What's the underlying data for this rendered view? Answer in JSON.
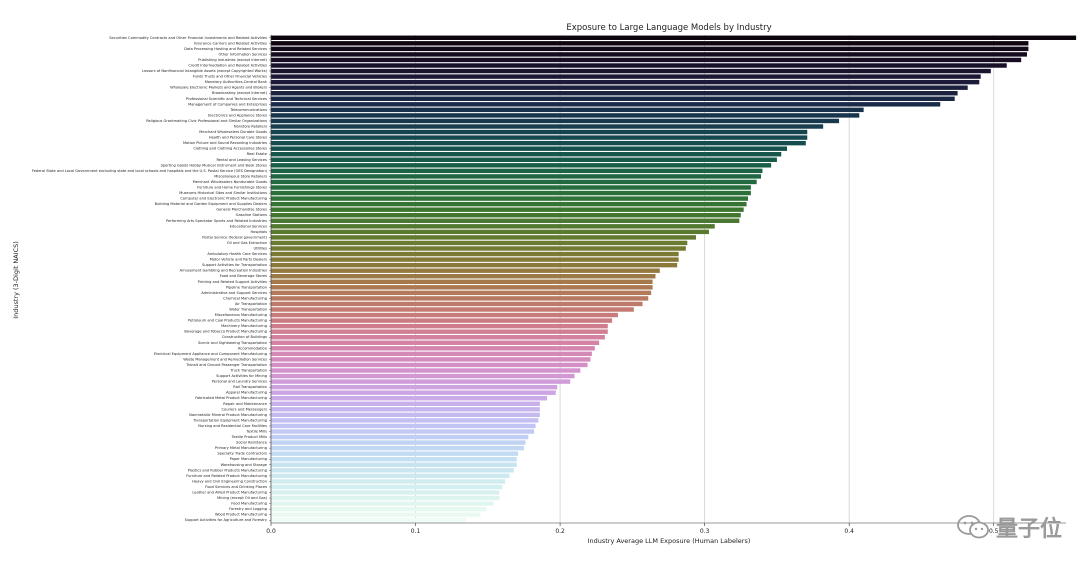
{
  "chart_data": {
    "type": "bar",
    "orientation": "horizontal",
    "title": "Exposure to Large Language Models by Industry",
    "xlabel": "Industry Average LLM Exposure (Human Labelers)",
    "ylabel": "Industry (3-Digit NAICS)",
    "xlim": [
      0,
      0.55
    ],
    "xticks": [
      "0.0",
      "0.1",
      "0.2",
      "0.3",
      "0.4",
      "0.5"
    ],
    "grid": "vertical",
    "colormap": "cubehelix",
    "categories": [
      "Securities Commodity Contracts and Other Financial Investments and Related Activities",
      "Insurance Carriers and Related Activities",
      "Data Processing Hosting and Related Services",
      "Other Information Services",
      "Publishing Industries (except Internet)",
      "Credit Intermediation and Related Activities",
      "Lessors of Nonfinancial Intangible Assets (except Copyrighted Works)",
      "Funds Trusts and Other Financial Vehicles",
      "Monetary Authorities-Central Bank",
      "Wholesale Electronic Markets and Agents and Brokers",
      "Broadcasting (except Internet)",
      "Professional Scientific and Technical Services",
      "Management of Companies and Enterprises",
      "Telecommunications",
      "Electronics and Appliance Stores",
      "Religious Grantmaking Civic Professional and Similar Organizations",
      "Nonstore Retailers",
      "Merchant Wholesalers Durable Goods",
      "Health and Personal Care Stores",
      "Motion Picture and Sound Recording Industries",
      "Clothing and Clothing Accessories Stores",
      "Real Estate",
      "Rental and Leasing Services",
      "Sporting Goods Hobby Musical Instrument and Book Stores",
      "Federal State and Local Government excluding state and local schools and hospitals and the U.S. Postal Service (OES Designation)",
      "Miscellaneous Store Retailers",
      "Merchant Wholesalers Nondurable Goods",
      "Furniture and Home Furnishings Stores",
      "Museums Historical Sites and Similar Institutions",
      "Computer and Electronic Product Manufacturing",
      "Building Material and Garden Equipment and Supplies Dealers",
      "General Merchandise Stores",
      "Gasoline Stations",
      "Performing Arts Spectator Sports and Related Industries",
      "Educational Services",
      "Hospitals",
      "Postal Service (federal government)",
      "Oil and Gas Extraction",
      "Utilities",
      "Ambulatory Health Care Services",
      "Motor Vehicle and Parts Dealers",
      "Support Activities for Transportation",
      "Amusement Gambling and Recreation Industries",
      "Food and Beverage Stores",
      "Printing and Related Support Activities",
      "Pipeline Transportation",
      "Administrative and Support Services",
      "Chemical Manufacturing",
      "Air Transportation",
      "Water Transportation",
      "Miscellaneous Manufacturing",
      "Petroleum and Coal Products Manufacturing",
      "Machinery Manufacturing",
      "Beverage and Tobacco Product Manufacturing",
      "Construction of Buildings",
      "Scenic and Sightseeing Transportation",
      "Accommodation",
      "Electrical Equipment Appliance and Component Manufacturing",
      "Waste Management and Remediation Services",
      "Transit and Ground Passenger Transportation",
      "Truck Transportation",
      "Support Activities for Mining",
      "Personal and Laundry Services",
      "Rail Transportation",
      "Apparel Manufacturing",
      "Fabricated Metal Product Manufacturing",
      "Repair and Maintenance",
      "Couriers and Messengers",
      "Nonmetallic Mineral Product Manufacturing",
      "Transportation Equipment Manufacturing",
      "Nursing and Residential Care Facilities",
      "Textile Mills",
      "Textile Product Mills",
      "Social Assistance",
      "Primary Metal Manufacturing",
      "Specialty Trade Contractors",
      "Paper Manufacturing",
      "Warehousing and Storage",
      "Plastics and Rubber Products Manufacturing",
      "Furniture and Related Product Manufacturing",
      "Heavy and Civil Engineering Construction",
      "Food Services and Drinking Places",
      "Leather and Allied Product Manufacturing",
      "Mining (except Oil and Gas)",
      "Food Manufacturing",
      "Forestry and Logging",
      "Wood Product Manufacturing",
      "Support Activities for Agriculture and Forestry"
    ],
    "values": [
      0.557,
      0.524,
      0.524,
      0.523,
      0.519,
      0.509,
      0.498,
      0.491,
      0.49,
      0.482,
      0.475,
      0.473,
      0.463,
      0.41,
      0.407,
      0.393,
      0.382,
      0.371,
      0.371,
      0.37,
      0.357,
      0.353,
      0.35,
      0.346,
      0.34,
      0.339,
      0.336,
      0.332,
      0.332,
      0.33,
      0.329,
      0.327,
      0.325,
      0.324,
      0.307,
      0.303,
      0.294,
      0.288,
      0.287,
      0.282,
      0.282,
      0.281,
      0.269,
      0.266,
      0.264,
      0.264,
      0.263,
      0.261,
      0.257,
      0.251,
      0.24,
      0.236,
      0.233,
      0.233,
      0.231,
      0.227,
      0.224,
      0.222,
      0.221,
      0.219,
      0.214,
      0.21,
      0.207,
      0.198,
      0.197,
      0.191,
      0.186,
      0.186,
      0.186,
      0.185,
      0.183,
      0.182,
      0.178,
      0.176,
      0.175,
      0.171,
      0.17,
      0.17,
      0.168,
      0.165,
      0.162,
      0.16,
      0.158,
      0.158,
      0.154,
      0.149,
      0.145,
      0.135
    ]
  },
  "watermark": {
    "text": "量子位",
    "icon": "wechat-icon"
  }
}
